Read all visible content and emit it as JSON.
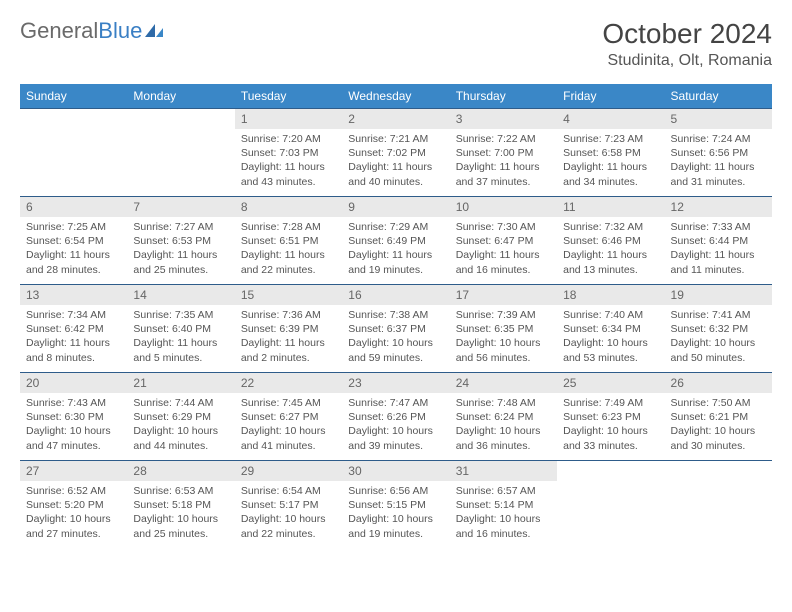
{
  "logo": {
    "word1": "General",
    "word2": "Blue"
  },
  "title": "October 2024",
  "location": "Studinita, Olt, Romania",
  "colors": {
    "header_bg": "#3a87c7",
    "header_text": "#ffffff",
    "daynum_bg": "#e9e9e9",
    "border": "#2e5c8a",
    "text": "#555555",
    "logo_gray": "#6a6a6a",
    "logo_blue": "#3a7fc4"
  },
  "weekdays": [
    "Sunday",
    "Monday",
    "Tuesday",
    "Wednesday",
    "Thursday",
    "Friday",
    "Saturday"
  ],
  "weeks": [
    [
      null,
      null,
      {
        "n": "1",
        "r": "7:20 AM",
        "s": "7:03 PM",
        "d": "11 hours and 43 minutes."
      },
      {
        "n": "2",
        "r": "7:21 AM",
        "s": "7:02 PM",
        "d": "11 hours and 40 minutes."
      },
      {
        "n": "3",
        "r": "7:22 AM",
        "s": "7:00 PM",
        "d": "11 hours and 37 minutes."
      },
      {
        "n": "4",
        "r": "7:23 AM",
        "s": "6:58 PM",
        "d": "11 hours and 34 minutes."
      },
      {
        "n": "5",
        "r": "7:24 AM",
        "s": "6:56 PM",
        "d": "11 hours and 31 minutes."
      }
    ],
    [
      {
        "n": "6",
        "r": "7:25 AM",
        "s": "6:54 PM",
        "d": "11 hours and 28 minutes."
      },
      {
        "n": "7",
        "r": "7:27 AM",
        "s": "6:53 PM",
        "d": "11 hours and 25 minutes."
      },
      {
        "n": "8",
        "r": "7:28 AM",
        "s": "6:51 PM",
        "d": "11 hours and 22 minutes."
      },
      {
        "n": "9",
        "r": "7:29 AM",
        "s": "6:49 PM",
        "d": "11 hours and 19 minutes."
      },
      {
        "n": "10",
        "r": "7:30 AM",
        "s": "6:47 PM",
        "d": "11 hours and 16 minutes."
      },
      {
        "n": "11",
        "r": "7:32 AM",
        "s": "6:46 PM",
        "d": "11 hours and 13 minutes."
      },
      {
        "n": "12",
        "r": "7:33 AM",
        "s": "6:44 PM",
        "d": "11 hours and 11 minutes."
      }
    ],
    [
      {
        "n": "13",
        "r": "7:34 AM",
        "s": "6:42 PM",
        "d": "11 hours and 8 minutes."
      },
      {
        "n": "14",
        "r": "7:35 AM",
        "s": "6:40 PM",
        "d": "11 hours and 5 minutes."
      },
      {
        "n": "15",
        "r": "7:36 AM",
        "s": "6:39 PM",
        "d": "11 hours and 2 minutes."
      },
      {
        "n": "16",
        "r": "7:38 AM",
        "s": "6:37 PM",
        "d": "10 hours and 59 minutes."
      },
      {
        "n": "17",
        "r": "7:39 AM",
        "s": "6:35 PM",
        "d": "10 hours and 56 minutes."
      },
      {
        "n": "18",
        "r": "7:40 AM",
        "s": "6:34 PM",
        "d": "10 hours and 53 minutes."
      },
      {
        "n": "19",
        "r": "7:41 AM",
        "s": "6:32 PM",
        "d": "10 hours and 50 minutes."
      }
    ],
    [
      {
        "n": "20",
        "r": "7:43 AM",
        "s": "6:30 PM",
        "d": "10 hours and 47 minutes."
      },
      {
        "n": "21",
        "r": "7:44 AM",
        "s": "6:29 PM",
        "d": "10 hours and 44 minutes."
      },
      {
        "n": "22",
        "r": "7:45 AM",
        "s": "6:27 PM",
        "d": "10 hours and 41 minutes."
      },
      {
        "n": "23",
        "r": "7:47 AM",
        "s": "6:26 PM",
        "d": "10 hours and 39 minutes."
      },
      {
        "n": "24",
        "r": "7:48 AM",
        "s": "6:24 PM",
        "d": "10 hours and 36 minutes."
      },
      {
        "n": "25",
        "r": "7:49 AM",
        "s": "6:23 PM",
        "d": "10 hours and 33 minutes."
      },
      {
        "n": "26",
        "r": "7:50 AM",
        "s": "6:21 PM",
        "d": "10 hours and 30 minutes."
      }
    ],
    [
      {
        "n": "27",
        "r": "6:52 AM",
        "s": "5:20 PM",
        "d": "10 hours and 27 minutes."
      },
      {
        "n": "28",
        "r": "6:53 AM",
        "s": "5:18 PM",
        "d": "10 hours and 25 minutes."
      },
      {
        "n": "29",
        "r": "6:54 AM",
        "s": "5:17 PM",
        "d": "10 hours and 22 minutes."
      },
      {
        "n": "30",
        "r": "6:56 AM",
        "s": "5:15 PM",
        "d": "10 hours and 19 minutes."
      },
      {
        "n": "31",
        "r": "6:57 AM",
        "s": "5:14 PM",
        "d": "10 hours and 16 minutes."
      },
      null,
      null
    ]
  ],
  "labels": {
    "sunrise": "Sunrise:",
    "sunset": "Sunset:",
    "daylight": "Daylight:"
  }
}
